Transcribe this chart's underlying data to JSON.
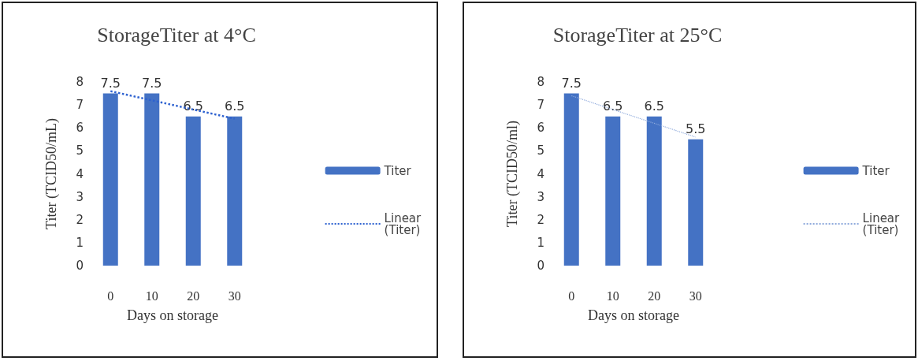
{
  "chart_data": [
    {
      "type": "bar",
      "title": "StorageTiter at 4°C",
      "xlabel": "Days on storage",
      "ylabel": "Titer (TCID50/mL)",
      "categories": [
        "0",
        "10",
        "20",
        "30"
      ],
      "ylim": [
        0,
        8
      ],
      "yticks": [
        0,
        1,
        2,
        3,
        4,
        5,
        6,
        7,
        8
      ],
      "grid": false,
      "legend": "right",
      "series": [
        {
          "name": "Titer",
          "color": "#4472c4",
          "values": [
            7.5,
            7.5,
            6.5,
            6.5
          ],
          "value_labels": [
            "7.5",
            "7.5",
            "6.5",
            "6.5"
          ]
        },
        {
          "name": "Linear (Titer)",
          "type": "line",
          "color": "#2e62d0",
          "line_style": "dotted",
          "marker": "none",
          "values": [
            7.6,
            7.2,
            6.8,
            6.4
          ]
        }
      ]
    },
    {
      "type": "bar",
      "title": "StorageTiter at 25°C",
      "xlabel": "Days on storage",
      "ylabel": "Titer (TCID50/ml)",
      "categories": [
        "0",
        "10",
        "20",
        "30"
      ],
      "ylim": [
        0,
        8
      ],
      "yticks": [
        0,
        1,
        2,
        3,
        4,
        5,
        6,
        7,
        8
      ],
      "grid": false,
      "legend": "right",
      "series": [
        {
          "name": "Titer",
          "color": "#4472c4",
          "values": [
            7.5,
            6.5,
            6.5,
            5.5
          ],
          "value_labels": [
            "7.5",
            "6.5",
            "6.5",
            "5.5"
          ]
        },
        {
          "name": "Linear (Titer)",
          "type": "line",
          "color": "#8faadc",
          "line_style": "dotted",
          "marker": "none",
          "values": [
            7.4,
            6.8,
            6.2,
            5.6
          ]
        }
      ]
    }
  ]
}
